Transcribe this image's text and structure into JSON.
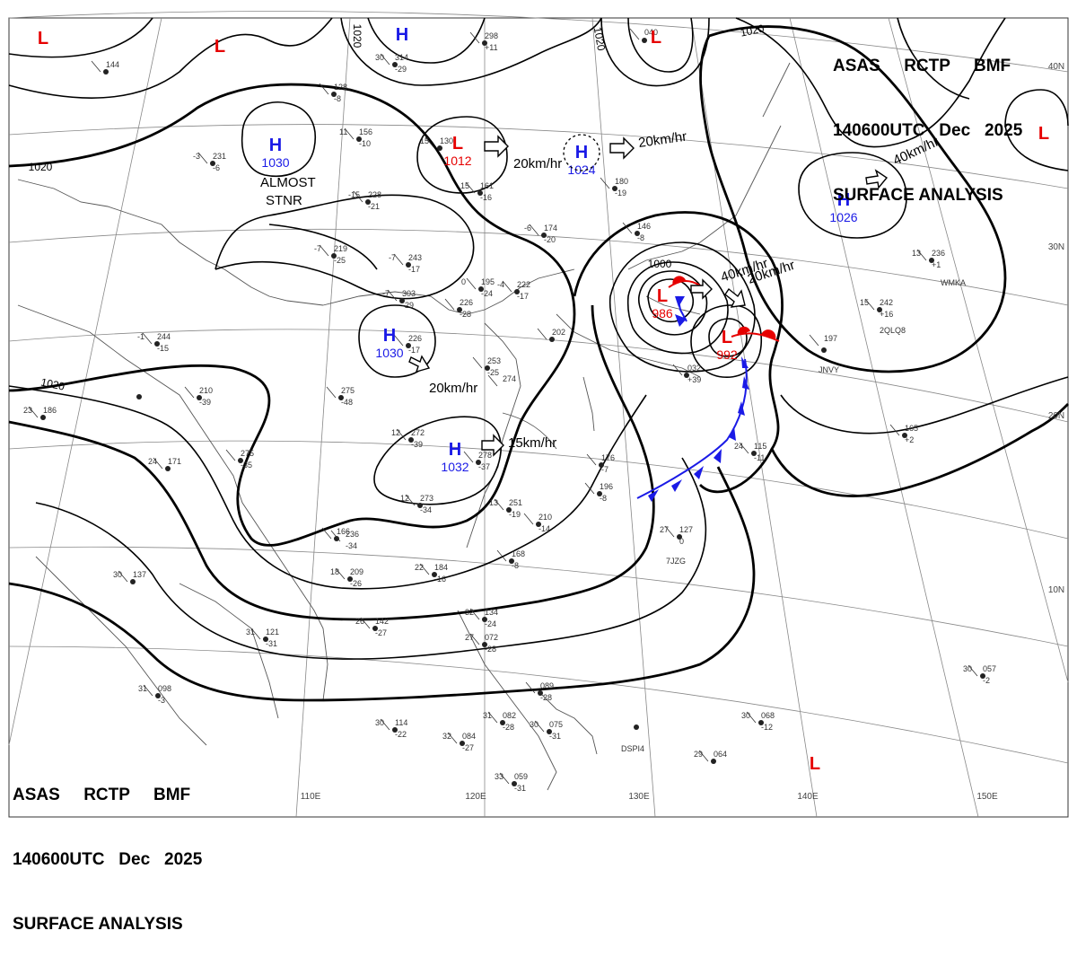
{
  "header": {
    "line1": [
      "ASAS",
      "RCTP",
      "BMF"
    ],
    "line2": [
      "140600UTC",
      "Dec",
      "2025"
    ],
    "line3": "SURFACE ANALYSIS"
  },
  "colors": {
    "high": "#1a1ae6",
    "low": "#e60000",
    "isobar": "#000000",
    "grid": "#777777",
    "coast": "#555555"
  },
  "pressure_centers": [
    {
      "type": "H",
      "value": ""
    },
    {
      "type": "H",
      "value": "1030"
    },
    {
      "type": "L",
      "value": "1012"
    },
    {
      "type": "H",
      "value": "1024"
    },
    {
      "type": "H",
      "value": "1026"
    },
    {
      "type": "H",
      "value": "1030"
    },
    {
      "type": "H",
      "value": "1032"
    },
    {
      "type": "L",
      "value": "986"
    },
    {
      "type": "L",
      "value": "992"
    },
    {
      "type": "L",
      "value": ""
    },
    {
      "type": "L",
      "value": ""
    },
    {
      "type": "L",
      "value": ""
    },
    {
      "type": "L",
      "value": ""
    },
    {
      "type": "L",
      "value": ""
    }
  ],
  "isobar_labels": [
    "1020",
    "1020",
    "1020",
    "1020",
    "1020",
    "1000"
  ],
  "movements": [
    "20km/hr",
    "20km/hr",
    "40km/hr",
    "40km/hr",
    "20km/hr",
    "20km/hr",
    "15km/hr"
  ],
  "annotations": [
    "ALMOST",
    "STNR"
  ],
  "lat_labels": [
    "40N",
    "30N",
    "20N",
    "10N"
  ],
  "lon_labels": [
    "110E",
    "120E",
    "130E",
    "140E",
    "150E"
  ],
  "ship_ids": [
    "WMKA",
    "2QLQ8",
    "JNVY",
    "7JZG",
    "DSPI4"
  ],
  "stations": [
    {
      "t": "",
      "p": "144",
      "d": ""
    },
    {
      "t": "",
      "p": "298",
      "d": "+11"
    },
    {
      "t": "",
      "p": "040",
      "d": ""
    },
    {
      "t": "30",
      "p": "314",
      "d": "-29"
    },
    {
      "t": "",
      "p": "128",
      "d": "-8"
    },
    {
      "t": "11",
      "p": "156",
      "d": "-10"
    },
    {
      "t": "15",
      "p": "130",
      "d": ""
    },
    {
      "t": "-3",
      "p": "231",
      "d": "-6"
    },
    {
      "t": "-15",
      "p": "228",
      "d": "-21"
    },
    {
      "t": "15",
      "p": "161",
      "d": "-16"
    },
    {
      "t": "",
      "p": "180",
      "d": "-19"
    },
    {
      "t": "-7",
      "p": "219",
      "d": "-25"
    },
    {
      "t": "-7",
      "p": "243",
      "d": "-17"
    },
    {
      "t": "-6",
      "p": "174",
      "d": "-20"
    },
    {
      "t": "",
      "p": "146",
      "d": "-8"
    },
    {
      "t": "-7",
      "p": "303",
      "d": "-29"
    },
    {
      "t": "0",
      "p": "195",
      "d": "-24"
    },
    {
      "t": "-4",
      "p": "222",
      "d": "-17"
    },
    {
      "t": "",
      "p": "226",
      "d": "-28"
    },
    {
      "t": "-1",
      "p": "244",
      "d": "-15"
    },
    {
      "t": "",
      "p": "226",
      "d": "-17"
    },
    {
      "t": "",
      "p": "202",
      "d": ""
    },
    {
      "t": "",
      "p": "275",
      "d": "-48"
    },
    {
      "t": "",
      "p": "253",
      "d": "-25"
    },
    {
      "t": "",
      "p": "274",
      "d": ""
    },
    {
      "t": "",
      "p": "210",
      "d": "-39"
    },
    {
      "t": "23",
      "p": "186",
      "d": ""
    },
    {
      "t": "12",
      "p": "272",
      "d": "-39"
    },
    {
      "t": "",
      "p": "275",
      "d": "-35"
    },
    {
      "t": "",
      "p": "278",
      "d": "-37"
    },
    {
      "t": "24",
      "p": "171",
      "d": ""
    },
    {
      "t": "12",
      "p": "273",
      "d": "-34"
    },
    {
      "t": "",
      "p": "176",
      "d": "-7"
    },
    {
      "t": "",
      "p": "196",
      "d": "-8"
    },
    {
      "t": "13",
      "p": "251",
      "d": "-19"
    },
    {
      "t": "",
      "p": "210",
      "d": "-14"
    },
    {
      "t": "",
      "p": "166",
      "d": ""
    },
    {
      "t": "",
      "p": "236",
      "d": "-34"
    },
    {
      "t": "",
      "p": "168",
      "d": "-8"
    },
    {
      "t": "18",
      "p": "209",
      "d": "-26"
    },
    {
      "t": "22",
      "p": "184",
      "d": "-16"
    },
    {
      "t": "27",
      "p": "127",
      "d": "0"
    },
    {
      "t": "24",
      "p": "115",
      "d": "-11"
    },
    {
      "t": "",
      "p": "032",
      "d": "+39"
    },
    {
      "t": "15",
      "p": "242",
      "d": "+16"
    },
    {
      "t": "",
      "p": "197",
      "d": ""
    },
    {
      "t": "",
      "p": "165",
      "d": "+2"
    },
    {
      "t": "13",
      "p": "236",
      "d": "+1"
    },
    {
      "t": "30",
      "p": "137",
      "d": ""
    },
    {
      "t": "26",
      "p": "142",
      "d": "-27"
    },
    {
      "t": "31",
      "p": "121",
      "d": "-31"
    },
    {
      "t": "32",
      "p": "134",
      "d": "-24"
    },
    {
      "t": "27",
      "p": "072",
      "d": "-28"
    },
    {
      "t": "31",
      "p": "098",
      "d": "-3"
    },
    {
      "t": "30",
      "p": "114",
      "d": "-22"
    },
    {
      "t": "",
      "p": "089",
      "d": "-28"
    },
    {
      "t": "31",
      "p": "082",
      "d": "-28"
    },
    {
      "t": "30",
      "p": "075",
      "d": "-31"
    },
    {
      "t": "32",
      "p": "084",
      "d": "-27"
    },
    {
      "t": "30",
      "p": "068",
      "d": "-12"
    },
    {
      "t": "29",
      "p": "064",
      "d": ""
    },
    {
      "t": "30",
      "p": "057",
      "d": "-2"
    },
    {
      "t": "33",
      "p": "059",
      "d": "-31"
    }
  ]
}
